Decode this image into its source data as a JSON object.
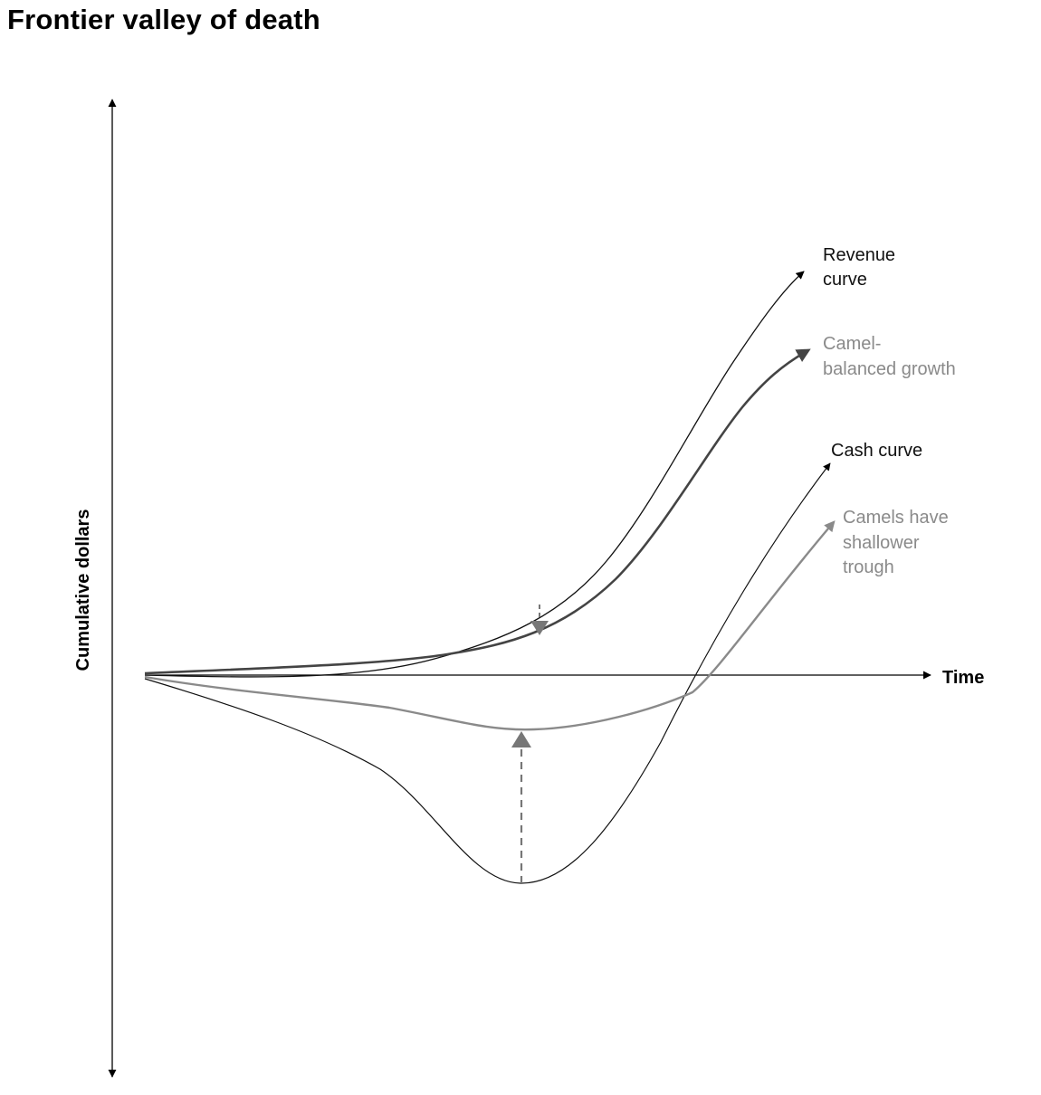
{
  "title": "Frontier valley of death",
  "axes": {
    "y_label": "Cumulative dollars",
    "x_label": "Time"
  },
  "curves": {
    "revenue": {
      "label_lines": [
        "Revenue",
        "curve"
      ],
      "color": "#111111"
    },
    "camel_growth": {
      "label_lines": [
        "Camel-",
        "balanced growth"
      ],
      "color": "#8a8a8a",
      "line_color": "#444444"
    },
    "cash": {
      "label": "Cash curve",
      "color": "#111111"
    },
    "camel_trough": {
      "label_lines": [
        "Camels have",
        "shallower",
        "trough"
      ],
      "color": "#8a8a8a",
      "line_color": "#8a8a8a"
    }
  },
  "colors": {
    "axis": "#000000",
    "gap_arrow": "#777777"
  }
}
